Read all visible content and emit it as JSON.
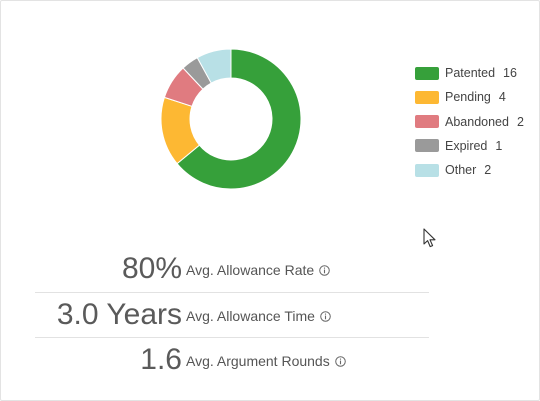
{
  "chart_data": {
    "type": "pie",
    "variant": "donut",
    "categories": [
      "Patented",
      "Pending",
      "Abandoned",
      "Expired",
      "Other"
    ],
    "values": [
      16,
      4,
      2,
      1,
      2
    ],
    "colors": [
      "#36a03a",
      "#fdb833",
      "#e07b80",
      "#9a9a9a",
      "#b8e0e6"
    ],
    "legend_position": "right"
  },
  "legend": [
    {
      "label": "Patented",
      "count": "16",
      "color": "#36a03a"
    },
    {
      "label": "Pending",
      "count": "4",
      "color": "#fdb833"
    },
    {
      "label": "Abandoned",
      "count": "2",
      "color": "#e07b80"
    },
    {
      "label": "Expired",
      "count": "1",
      "color": "#9a9a9a"
    },
    {
      "label": "Other",
      "count": "2",
      "color": "#b8e0e6"
    }
  ],
  "stats": [
    {
      "value": "80%",
      "label": "Avg. Allowance Rate",
      "info_icon": "info-icon"
    },
    {
      "value": "3.0 Years",
      "label": "Avg. Allowance Time",
      "info_icon": "info-icon"
    },
    {
      "value": "1.6",
      "label": "Avg. Argument Rounds",
      "info_icon": "info-icon"
    }
  ],
  "cursor_icon": "mouse-pointer-icon"
}
